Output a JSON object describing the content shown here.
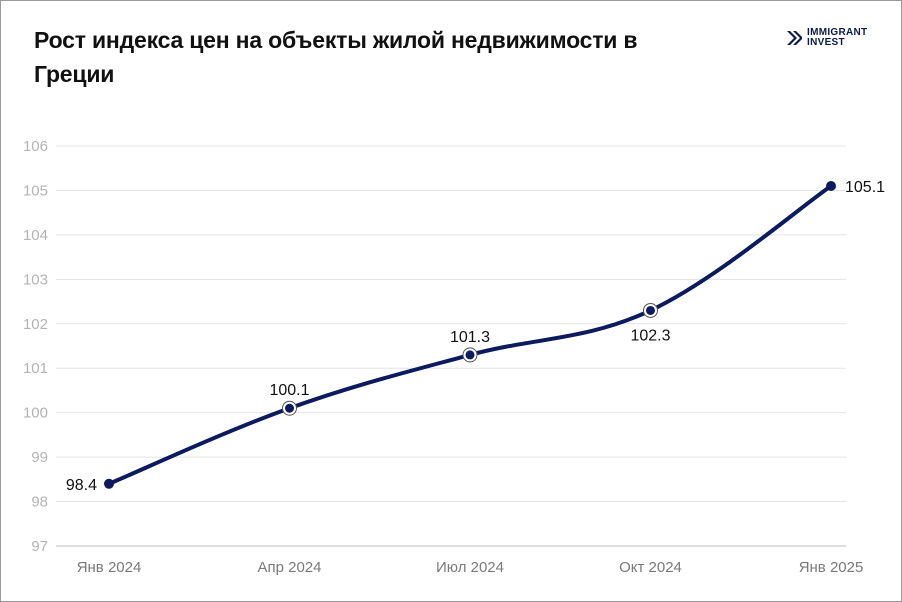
{
  "title": "Рост индекса цен на объекты жилой недвижимости в Греции",
  "logo": {
    "line1": "IMMIGRANT",
    "line2": "INVEST",
    "icon": "immigrant-invest-logo-icon",
    "color": "#0c1a4b"
  },
  "chart_data": {
    "type": "line",
    "categories": [
      "Янв 2024",
      "Апр 2024",
      "Июл 2024",
      "Окт 2024",
      "Янв 2025"
    ],
    "series": [
      {
        "values": [
          98.4,
          100.1,
          101.3,
          102.3,
          105.1
        ],
        "color": "#0c1a5e"
      }
    ],
    "data_labels": [
      "98.4",
      "100.1",
      "101.3",
      "102.3",
      "105.1"
    ],
    "ylim": [
      97,
      106
    ],
    "yticks": [
      "97",
      "98",
      "99",
      "100",
      "101",
      "102",
      "103",
      "104",
      "105",
      "106"
    ],
    "grid": true,
    "smooth": true
  }
}
